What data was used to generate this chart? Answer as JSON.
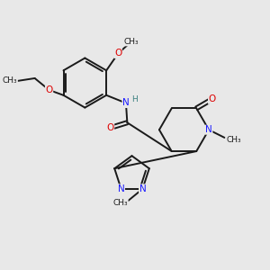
{
  "bg_color": "#e8e8e8",
  "bond_color": "#1a1a1a",
  "N_color": "#1a1aff",
  "O_color": "#dd0000",
  "H_color": "#3a8080",
  "font_size": 7.5,
  "bond_width": 1.4,
  "dbo": 0.055,
  "figsize": [
    3.0,
    3.0
  ],
  "dpi": 100,
  "xlim": [
    0,
    10
  ],
  "ylim": [
    0,
    10
  ]
}
